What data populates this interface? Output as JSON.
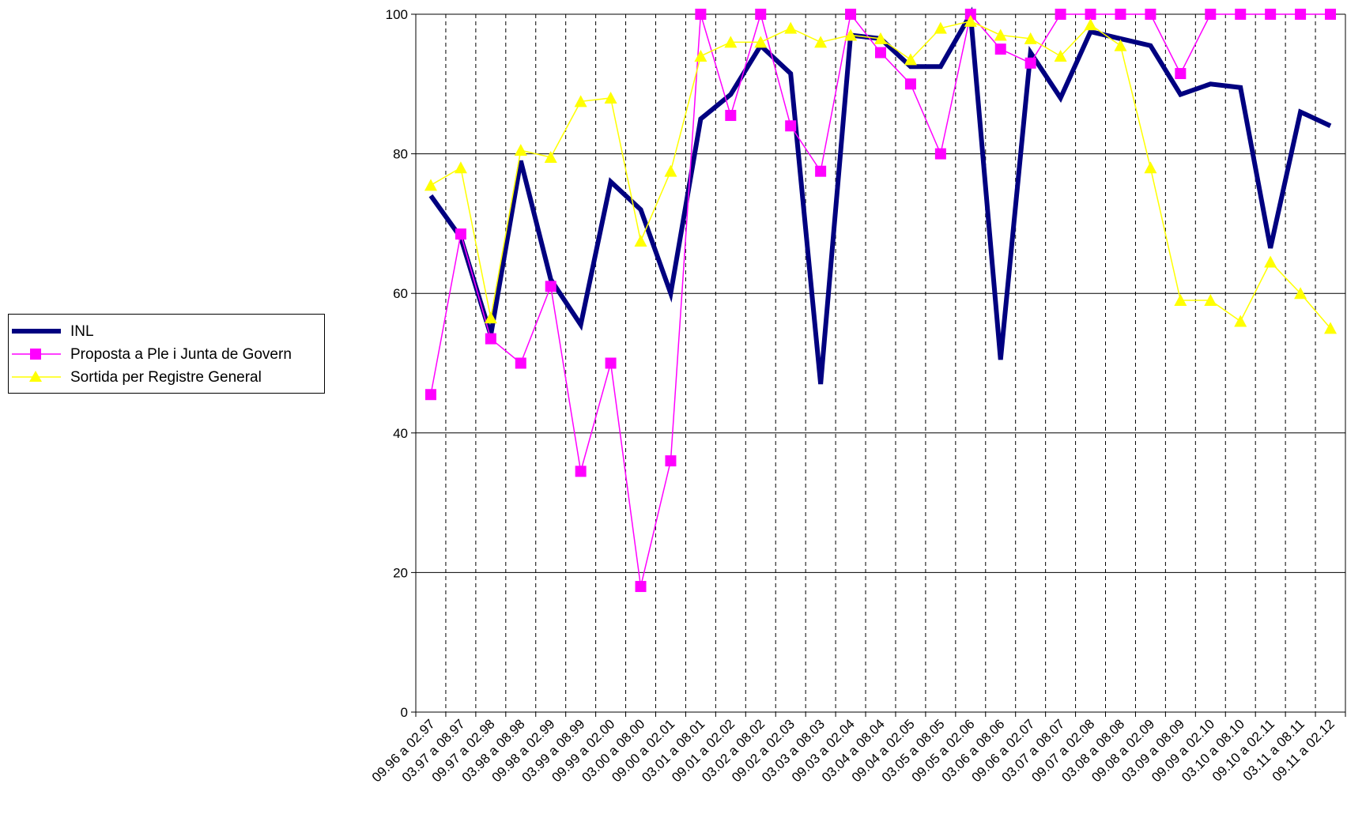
{
  "chart_data": {
    "type": "line",
    "title": "",
    "xlabel": "",
    "ylabel": "",
    "ylim": [
      0,
      100
    ],
    "yticks": [
      0,
      20,
      40,
      60,
      80,
      100
    ],
    "grid": {
      "horizontal": true,
      "vertical_dashed": true
    },
    "legend_position": "left",
    "categories": [
      "09.96 a 02.97",
      "03.97 a 08.97",
      "09.97 a 02.98",
      "03.98 a 08.98",
      "09.98 a 02.99",
      "03.99 a 08.99",
      "09.99 a 02.00",
      "03.00 a 08.00",
      "09.00 a 02.01",
      "03.01 a 08.01",
      "09.01 a 02.02",
      "03.02 a 08.02",
      "09.02 a 02.03",
      "03.03 a 08.03",
      "09.03 a 02.04",
      "03.04 a 08.04",
      "09.04 a 02.05",
      "03.05 a 08.05",
      "09.05 a 02.06",
      "03.06 a 08.06",
      "09.06 a 02.07",
      "03.07 a 08.07",
      "09.07 a 02.08",
      "03.08 a 08.08",
      "09.08 a 02.09",
      "03.09 a 08.09",
      "09.09 a 02.10",
      "03.10 a 08.10",
      "09.10 a 02.11",
      "03.11 a 08.11",
      "09.11 a 02.12"
    ],
    "series": [
      {
        "name": "INL",
        "color": "#000080",
        "marker": "none",
        "values": [
          74,
          68,
          54,
          79,
          62,
          55.5,
          76,
          72,
          60,
          85,
          88.5,
          95.5,
          91.5,
          47,
          97,
          96.5,
          92.5,
          92.5,
          100,
          50.5,
          94.5,
          88,
          97.5,
          96.5,
          95.5,
          88.5,
          90,
          89.5,
          66.5,
          86,
          84
        ]
      },
      {
        "name": "Proposta a Ple i Junta de Govern",
        "color": "#ff00ff",
        "marker": "square",
        "values": [
          45.5,
          68.5,
          53.5,
          50,
          61,
          34.5,
          50,
          18,
          36,
          100,
          85.5,
          100,
          84,
          77.5,
          100,
          94.5,
          90,
          80,
          100,
          95,
          93,
          100,
          100,
          100,
          100,
          91.5,
          100,
          100,
          100,
          100,
          100
        ]
      },
      {
        "name": "Sortida per Registre General",
        "color": "#ffff00",
        "marker": "triangle",
        "values": [
          75.5,
          78,
          56.5,
          80.5,
          79.5,
          87.5,
          88,
          67.5,
          77.5,
          94,
          96,
          96,
          98,
          96,
          97,
          96.5,
          93.5,
          98,
          99,
          97,
          96.5,
          94,
          98.5,
          95.5,
          78,
          59,
          59,
          56,
          64.5,
          60,
          55
        ]
      }
    ]
  },
  "legend": [
    {
      "label": "INL",
      "color": "#000080",
      "marker": "none"
    },
    {
      "label": "Proposta a Ple i Junta de Govern",
      "color": "#ff00ff",
      "marker": "square"
    },
    {
      "label": "Sortida per Registre General",
      "color": "#ffff00",
      "marker": "triangle"
    }
  ]
}
